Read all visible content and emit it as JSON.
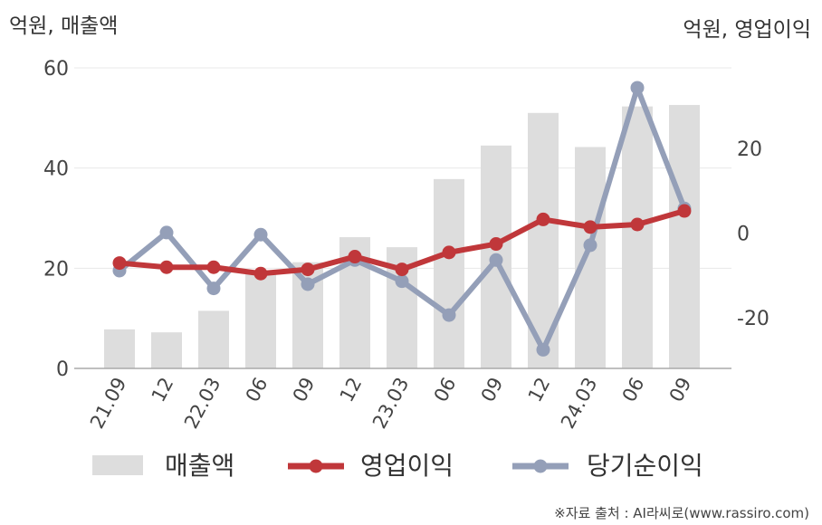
{
  "chart_data": {
    "type": "bar",
    "categories": [
      "21.09",
      "12",
      "22.03",
      "06",
      "09",
      "12",
      "23.03",
      "06",
      "09",
      "12",
      "24.03",
      "06",
      "09"
    ],
    "left_axis": {
      "unit_label": "억원, 매출액",
      "ticks": [
        0,
        20,
        40,
        60
      ],
      "range": [
        0,
        60
      ]
    },
    "right_axis": {
      "unit_label": "억원, 영업이익",
      "ticks": [
        -20,
        0,
        20
      ],
      "range": [
        -32,
        39
      ]
    },
    "series": [
      {
        "name": "매출액",
        "type": "bar",
        "axis": "left",
        "color": "#dddddd",
        "values": [
          7.8,
          7.2,
          11.5,
          19.2,
          21.2,
          26.2,
          24.2,
          37.8,
          44.5,
          51.0,
          44.2,
          52.3,
          52.6
        ]
      },
      {
        "name": "영업이익",
        "type": "line",
        "axis": "right",
        "color": "#c0373a",
        "values": [
          -7.1,
          -8.1,
          -8.1,
          -9.6,
          -8.6,
          -5.6,
          -8.6,
          -4.6,
          -2.6,
          3.2,
          1.4,
          2.0,
          5.2
        ]
      },
      {
        "name": "당기순이익",
        "type": "line",
        "axis": "right",
        "color": "#949fb8",
        "values": [
          -8.9,
          0.1,
          -13.1,
          -0.4,
          -12.1,
          -6.4,
          -11.4,
          -19.4,
          -6.4,
          -27.6,
          -2.9,
          34.3,
          5.8
        ]
      }
    ],
    "grid": true,
    "legend_position": "bottom"
  },
  "source_note": "※자료 출처 : AI라씨로(www.rassiro.com)"
}
